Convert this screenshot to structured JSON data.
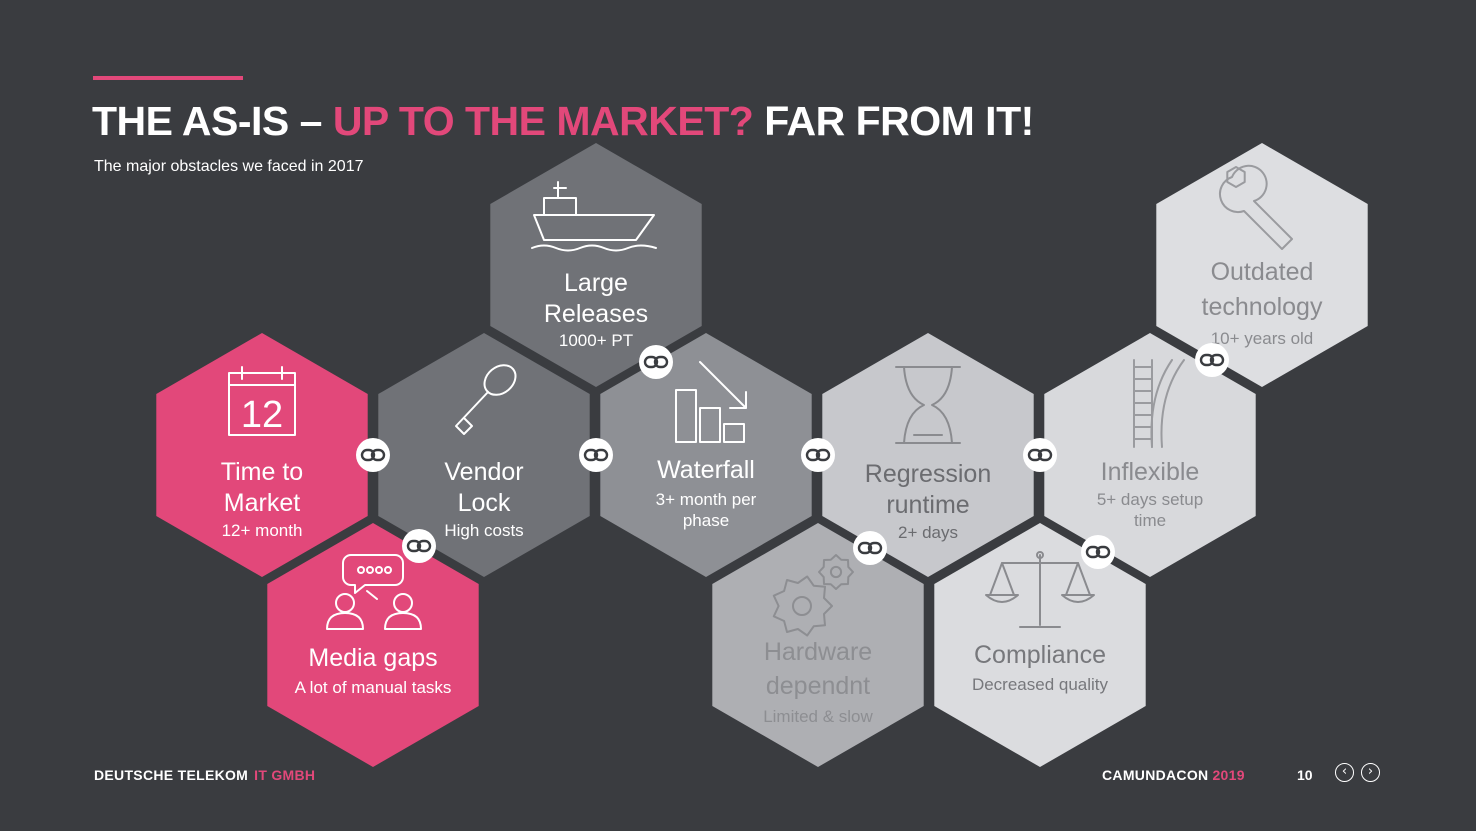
{
  "slide": {
    "title_part1": "THE AS-IS – ",
    "title_highlight": "UP TO THE MARKET?",
    "title_part2": " FAR FROM IT!",
    "subtitle": "The major obstacles we faced in 2017"
  },
  "hexagons": [
    {
      "key": "time",
      "title_lines": [
        "Time to",
        "Market"
      ],
      "subtitle_lines": [
        "12+ month"
      ],
      "icon": "calendar-icon",
      "calendar_day": "12",
      "fill": "#e2487a",
      "text_color": "#ffffff",
      "sub_color": "#ffffff",
      "icon_color": "#ffffff"
    },
    {
      "key": "media",
      "title_lines": [
        "Media gaps"
      ],
      "subtitle_lines": [
        "A lot of manual tasks"
      ],
      "icon": "chat-people-icon",
      "fill": "#e2487a",
      "text_color": "#ffffff",
      "sub_color": "#ffffff",
      "icon_color": "#ffffff"
    },
    {
      "key": "vendor",
      "title_lines": [
        "Vendor",
        "Lock"
      ],
      "subtitle_lines": [
        "High costs"
      ],
      "icon": "key-icon",
      "fill": "#707277",
      "text_color": "#ffffff",
      "sub_color": "#ffffff",
      "icon_color": "#ffffff"
    },
    {
      "key": "large",
      "title_lines": [
        "Large",
        "Releases"
      ],
      "subtitle_lines": [
        "1000+ PT"
      ],
      "icon": "ship-icon",
      "fill": "#707277",
      "text_color": "#ffffff",
      "sub_color": "#ffffff",
      "icon_color": "#ffffff"
    },
    {
      "key": "waterfall",
      "title_lines": [
        "Waterfall"
      ],
      "subtitle_lines": [
        "3+ month per",
        "phase"
      ],
      "icon": "waterfall-chart-icon",
      "fill": "#8e9095",
      "text_color": "#ffffff",
      "sub_color": "#ffffff",
      "icon_color": "#ffffff"
    },
    {
      "key": "hardware",
      "title_lines": [
        "Hardware",
        "dependnt"
      ],
      "subtitle_lines": [
        "Limited & slow"
      ],
      "icon": "gears-icon",
      "fill": "#aeafb3",
      "text_color": "#8d8e92",
      "sub_color": "#8d8e92",
      "icon_color": "#8d8e92"
    },
    {
      "key": "regression",
      "title_lines": [
        "Regression",
        "runtime"
      ],
      "subtitle_lines": [
        "2+ days"
      ],
      "icon": "hourglass-icon",
      "fill": "#c7c8cc",
      "text_color": "#6b6c70",
      "sub_color": "#6b6c70",
      "icon_color": "#8a8b8f"
    },
    {
      "key": "compliance",
      "title_lines": [
        "Compliance"
      ],
      "subtitle_lines": [
        "Decreased quality"
      ],
      "icon": "scales-icon",
      "fill": "#dbdcdf",
      "text_color": "#77787c",
      "sub_color": "#77787c",
      "icon_color": "#8a8b8f"
    },
    {
      "key": "inflexible",
      "title_lines": [
        "Inflexible"
      ],
      "subtitle_lines": [
        "5+ days setup",
        "time"
      ],
      "icon": "ladder-icon",
      "fill": "#d8d9dc",
      "text_color": "#8a8b8f",
      "sub_color": "#8a8b8f",
      "icon_color": "#9a9b9f"
    },
    {
      "key": "outdated",
      "title_lines": [
        "Outdated",
        "technology"
      ],
      "subtitle_lines": [
        "10+ years old"
      ],
      "icon": "wrench-icon",
      "fill": "#dddee1",
      "text_color": "#8a8b8f",
      "sub_color": "#8a8b8f",
      "icon_color": "#9a9b9f"
    }
  ],
  "footer": {
    "company": "DEUTSCHE TELEKOM",
    "division": "IT GMBH",
    "event": "CAMUNDACON",
    "year": "2019",
    "page_number": "10",
    "prev_icon": "chevron-left-icon",
    "next_icon": "chevron-right-icon"
  },
  "colors": {
    "background": "#3a3c40",
    "accent": "#e2487a"
  }
}
